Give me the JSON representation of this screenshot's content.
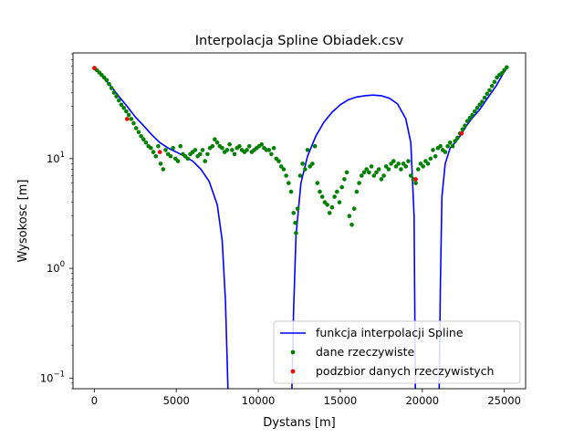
{
  "chart_data": {
    "type": "scatter",
    "title": "Interpolacja Spline Obiadek.csv",
    "xlabel": "Dystans [m]",
    "ylabel": "Wysokosc [m]",
    "xlim": [
      -1300,
      26300
    ],
    "ylim": [
      0.08,
      92
    ],
    "y_scale": "log",
    "grid": false,
    "legend_placement": "lower-right",
    "x_ticks": [
      {
        "value": 0,
        "label": "0"
      },
      {
        "value": 5000,
        "label": "5000"
      },
      {
        "value": 10000,
        "label": "10000"
      },
      {
        "value": 15000,
        "label": "15000"
      },
      {
        "value": 20000,
        "label": "20000"
      },
      {
        "value": 25000,
        "label": "25000"
      }
    ],
    "y_ticks": [
      {
        "value": 0.1,
        "label_base": "10",
        "label_exp": "−1"
      },
      {
        "value": 1,
        "label_base": "10",
        "label_exp": "0"
      },
      {
        "value": 10,
        "label_base": "10",
        "label_exp": "1"
      }
    ],
    "series": [
      {
        "name": "funkcja interpolacji Spline",
        "kind": "line",
        "color": "#0000ff",
        "segments": [
          [
            [
              0,
              67
            ],
            [
              500,
              56
            ],
            [
              1000,
              46
            ],
            [
              1500,
              37
            ],
            [
              2000,
              30
            ],
            [
              2500,
              24
            ],
            [
              3000,
              20
            ],
            [
              3500,
              16.5
            ],
            [
              4000,
              14
            ],
            [
              4500,
              12.5
            ],
            [
              5000,
              11.5
            ],
            [
              5500,
              10.5
            ],
            [
              6000,
              9.5
            ],
            [
              6500,
              8
            ],
            [
              7000,
              6.2
            ],
            [
              7500,
              3.8
            ],
            [
              7800,
              1.8
            ],
            [
              8000,
              0.5
            ],
            [
              8150,
              0.08
            ]
          ],
          [
            [
              12050,
              0.08
            ],
            [
              12150,
              0.4
            ],
            [
              12300,
              2
            ],
            [
              12600,
              6
            ],
            [
              13000,
              10.5
            ],
            [
              13500,
              16
            ],
            [
              14000,
              21.5
            ],
            [
              14500,
              26.5
            ],
            [
              15000,
              31
            ],
            [
              15500,
              34.5
            ],
            [
              16000,
              36.5
            ],
            [
              16500,
              37.5
            ],
            [
              17000,
              38
            ],
            [
              17500,
              37.5
            ],
            [
              18000,
              35.5
            ],
            [
              18500,
              31.5
            ],
            [
              19000,
              23
            ],
            [
              19300,
              14
            ],
            [
              19500,
              3
            ],
            [
              19580,
              0.08
            ]
          ],
          [
            [
              21030,
              0.08
            ],
            [
              21100,
              0.7
            ],
            [
              21200,
              4.5
            ],
            [
              21400,
              9
            ],
            [
              21700,
              12.5
            ],
            [
              22000,
              14
            ],
            [
              22300,
              16
            ],
            [
              22700,
              20
            ],
            [
              23000,
              23
            ],
            [
              23500,
              28
            ],
            [
              24000,
              36
            ],
            [
              24500,
              46
            ],
            [
              25000,
              62
            ],
            [
              25200,
              70
            ]
          ]
        ]
      },
      {
        "name": "dane rzeczywiste",
        "kind": "scatter",
        "color": "#008000",
        "points": [
          [
            0,
            67
          ],
          [
            150,
            64
          ],
          [
            300,
            61
          ],
          [
            450,
            58
          ],
          [
            600,
            55
          ],
          [
            750,
            52
          ],
          [
            900,
            48
          ],
          [
            1050,
            44
          ],
          [
            1200,
            40
          ],
          [
            1350,
            37
          ],
          [
            1500,
            34
          ],
          [
            1650,
            31
          ],
          [
            1800,
            29
          ],
          [
            1950,
            27
          ],
          [
            2100,
            25
          ],
          [
            2250,
            23
          ],
          [
            2400,
            21
          ],
          [
            2550,
            19
          ],
          [
            2700,
            17.5
          ],
          [
            2850,
            16
          ],
          [
            3000,
            15
          ],
          [
            3150,
            14
          ],
          [
            3300,
            13
          ],
          [
            3450,
            12.5
          ],
          [
            3600,
            11.5
          ],
          [
            3750,
            10.5
          ],
          [
            3900,
            13
          ],
          [
            4050,
            9
          ],
          [
            4200,
            8
          ],
          [
            4350,
            12
          ],
          [
            4500,
            11
          ],
          [
            4650,
            10.5
          ],
          [
            4800,
            12.5
          ],
          [
            4950,
            10
          ],
          [
            5100,
            9.5
          ],
          [
            5250,
            13
          ],
          [
            5400,
            11
          ],
          [
            5550,
            10.5
          ],
          [
            5700,
            10
          ],
          [
            5850,
            11
          ],
          [
            6000,
            11.5
          ],
          [
            6150,
            12
          ],
          [
            6300,
            10.5
          ],
          [
            6450,
            11
          ],
          [
            6600,
            12
          ],
          [
            6750,
            9.5
          ],
          [
            6900,
            11
          ],
          [
            7050,
            12.5
          ],
          [
            7200,
            13
          ],
          [
            7350,
            15
          ],
          [
            7500,
            14
          ],
          [
            7650,
            13
          ],
          [
            7800,
            12.5
          ],
          [
            7950,
            11.5
          ],
          [
            8100,
            12
          ],
          [
            8250,
            13.5
          ],
          [
            8400,
            12
          ],
          [
            8550,
            11
          ],
          [
            8700,
            12.5
          ],
          [
            8850,
            13
          ],
          [
            9000,
            12
          ],
          [
            9150,
            11.5
          ],
          [
            9300,
            12
          ],
          [
            9450,
            13
          ],
          [
            9600,
            11.5
          ],
          [
            9750,
            12
          ],
          [
            9900,
            12.5
          ],
          [
            10050,
            13
          ],
          [
            10200,
            13.5
          ],
          [
            10350,
            12.5
          ],
          [
            10500,
            12
          ],
          [
            10650,
            12
          ],
          [
            10800,
            11
          ],
          [
            10950,
            12.5
          ],
          [
            11100,
            10
          ],
          [
            11250,
            9.5
          ],
          [
            11400,
            8.5
          ],
          [
            11550,
            8
          ],
          [
            11700,
            7
          ],
          [
            11850,
            6
          ],
          [
            12000,
            5
          ],
          [
            12150,
            3.2
          ],
          [
            12250,
            2.6
          ],
          [
            12300,
            2.1
          ],
          [
            12400,
            3.5
          ],
          [
            12550,
            7
          ],
          [
            12700,
            9
          ],
          [
            12850,
            8
          ],
          [
            13000,
            12
          ],
          [
            13150,
            8.5
          ],
          [
            13300,
            9
          ],
          [
            13450,
            13
          ],
          [
            13600,
            6
          ],
          [
            13750,
            5
          ],
          [
            13900,
            4.5
          ],
          [
            14050,
            4
          ],
          [
            14200,
            3.8
          ],
          [
            14350,
            3.2
          ],
          [
            14500,
            3.6
          ],
          [
            14650,
            4.5
          ],
          [
            14800,
            5
          ],
          [
            14950,
            4
          ],
          [
            15100,
            5.5
          ],
          [
            15250,
            6.5
          ],
          [
            15400,
            7.5
          ],
          [
            15550,
            3
          ],
          [
            15700,
            2.5
          ],
          [
            15850,
            3.5
          ],
          [
            16000,
            5
          ],
          [
            16150,
            6
          ],
          [
            16300,
            7
          ],
          [
            16450,
            7.5
          ],
          [
            16600,
            8
          ],
          [
            16750,
            7.5
          ],
          [
            16900,
            8.5
          ],
          [
            17050,
            7
          ],
          [
            17200,
            7.5
          ],
          [
            17350,
            8
          ],
          [
            17500,
            6.5
          ],
          [
            17650,
            7
          ],
          [
            17800,
            8.5
          ],
          [
            17950,
            8
          ],
          [
            18100,
            9
          ],
          [
            18250,
            9.5
          ],
          [
            18400,
            8.5
          ],
          [
            18550,
            9
          ],
          [
            18700,
            8
          ],
          [
            18850,
            9
          ],
          [
            19000,
            8.5
          ],
          [
            19150,
            9.5
          ],
          [
            19300,
            7
          ],
          [
            19450,
            6.5
          ],
          [
            19600,
            6
          ],
          [
            19750,
            8
          ],
          [
            19900,
            9
          ],
          [
            20050,
            8.5
          ],
          [
            20200,
            9.5
          ],
          [
            20350,
            9
          ],
          [
            20500,
            10
          ],
          [
            20650,
            12
          ],
          [
            20800,
            10.5
          ],
          [
            20950,
            12.5
          ],
          [
            21100,
            13
          ],
          [
            21250,
            12
          ],
          [
            21400,
            11.5
          ],
          [
            21550,
            13
          ],
          [
            21700,
            14
          ],
          [
            21850,
            13
          ],
          [
            22000,
            14.5
          ],
          [
            22150,
            15.5
          ],
          [
            22300,
            17
          ],
          [
            22450,
            18.5
          ],
          [
            22600,
            20
          ],
          [
            22750,
            22
          ],
          [
            22900,
            23.5
          ],
          [
            23050,
            25
          ],
          [
            23200,
            27
          ],
          [
            23350,
            29
          ],
          [
            23500,
            31
          ],
          [
            23650,
            33
          ],
          [
            23800,
            36
          ],
          [
            23950,
            39
          ],
          [
            24100,
            42
          ],
          [
            24250,
            46
          ],
          [
            24400,
            50
          ],
          [
            24550,
            55
          ],
          [
            24700,
            58
          ],
          [
            24850,
            60
          ],
          [
            25000,
            64
          ],
          [
            25150,
            68
          ]
        ]
      },
      {
        "name": "podzbior danych rzeczywistych",
        "kind": "scatter",
        "color": "#ff0000",
        "points": [
          [
            0,
            67
          ],
          [
            2000,
            23
          ],
          [
            4000,
            11.5
          ],
          [
            19600,
            6.5
          ],
          [
            22400,
            17
          ]
        ]
      }
    ]
  }
}
